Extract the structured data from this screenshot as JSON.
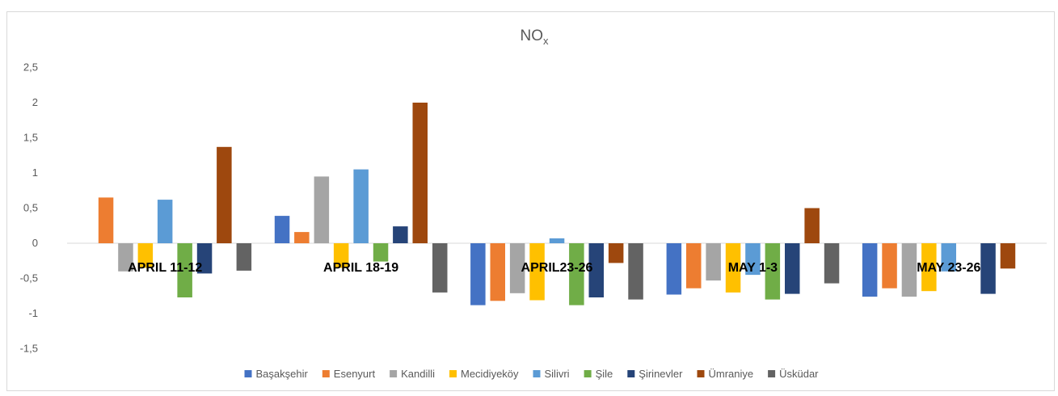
{
  "chart_data": {
    "type": "bar",
    "title": "NO",
    "title_subscript": "x",
    "categories": [
      "APRIL 11-12",
      "APRIL 18-19",
      "APRIL23-26",
      "MAY 1-3",
      "MAY 23-26"
    ],
    "ylim": [
      -1.5,
      2.5
    ],
    "y_ticks": [
      "2,5",
      "2",
      "1,5",
      "1",
      "0,5",
      "0",
      "-0,5",
      "-1",
      "-1,5"
    ],
    "y_tick_values": [
      2.5,
      2,
      1.5,
      1,
      0.5,
      0,
      -0.5,
      -1,
      -1.5
    ],
    "grid": false,
    "legend_position": "bottom",
    "series": [
      {
        "name": "Başakşehir",
        "color": "#4472C4",
        "values": [
          null,
          0.39,
          -0.88,
          -0.73,
          -0.76
        ]
      },
      {
        "name": "Esenyurt",
        "color": "#ED7D31",
        "values": [
          0.65,
          0.16,
          -0.82,
          -0.64,
          -0.64
        ]
      },
      {
        "name": "Kandilli",
        "color": "#A5A5A5",
        "values": [
          -0.4,
          0.95,
          -0.71,
          -0.53,
          -0.76
        ]
      },
      {
        "name": "Mecidiyeköy",
        "color": "#FFC000",
        "values": [
          -0.35,
          -0.35,
          -0.81,
          -0.7,
          -0.68
        ]
      },
      {
        "name": "Silivri",
        "color": "#5B9BD5",
        "values": [
          0.62,
          1.05,
          0.07,
          -0.45,
          -0.4
        ]
      },
      {
        "name": "Şile",
        "color": "#70AD47",
        "values": [
          -0.77,
          -0.26,
          -0.88,
          -0.8,
          null
        ]
      },
      {
        "name": "Şirinevler",
        "color": "#264478",
        "values": [
          -0.43,
          0.24,
          -0.77,
          -0.72,
          -0.72
        ]
      },
      {
        "name": "Ümraniye",
        "color": "#9E480E",
        "values": [
          1.37,
          2.0,
          -0.28,
          0.5,
          -0.36
        ]
      },
      {
        "name": "Üsküdar",
        "color": "#636363",
        "values": [
          -0.39,
          -0.7,
          -0.8,
          -0.57,
          null
        ]
      }
    ]
  }
}
